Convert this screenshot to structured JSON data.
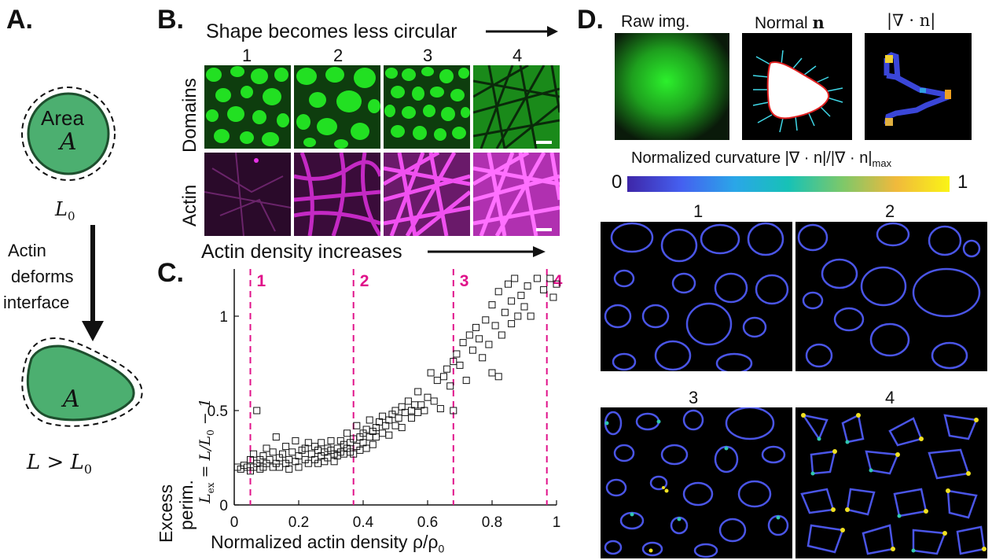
{
  "panel_a": {
    "label": "A.",
    "area_word": "Area",
    "area_symbol": "A",
    "l0": "L",
    "l0_sub": "0",
    "arrow_text_1": "Actin",
    "arrow_text_2": "deforms",
    "arrow_text_3": "interface",
    "deformed_symbol": "A",
    "condition": "L > L",
    "condition_sub": "0",
    "fill_color": "#4caf70",
    "stroke_color": "#1e4f2e"
  },
  "panel_b": {
    "label": "B.",
    "top_caption": "Shape becomes less circular",
    "bottom_caption": "Actin density increases",
    "columns": [
      "1",
      "2",
      "3",
      "4"
    ],
    "row1_label": "Domains",
    "row2_label": "Actin",
    "domain_color": "#1ee21e",
    "actin_color": "#e632e6"
  },
  "panel_c": {
    "label": "C.",
    "xlabel": "Normalized actin density ρ/ρ",
    "xlabel_sub": "0",
    "ylabel_1": "Excess",
    "ylabel_2": "perim.",
    "ylabel_math": "L",
    "ylabel_math_rest": " = L/L",
    "ylabel_math_end": " − 1",
    "ylabel_sub_ex": "ex",
    "ylabel_sub_0": "0",
    "line_color": "#e0128a"
  },
  "chart_data": {
    "type": "scatter",
    "title": "",
    "xlabel": "Normalized actin density ρ/ρ0",
    "ylabel": "Excess perim. Lex = L/L0 − 1",
    "xlim": [
      0,
      1
    ],
    "ylim": [
      0,
      1.25
    ],
    "xticks": [
      "0",
      "0.2",
      "0.4",
      "0.6",
      "0.8",
      "1"
    ],
    "yticks": [
      "0",
      "0.5",
      "1"
    ],
    "vlines": [
      {
        "label": "1",
        "x": 0.05
      },
      {
        "label": "2",
        "x": 0.37
      },
      {
        "label": "3",
        "x": 0.68
      },
      {
        "label": "4",
        "x": 0.97
      }
    ],
    "points": [
      [
        0.01,
        0.2
      ],
      [
        0.02,
        0.19
      ],
      [
        0.03,
        0.21
      ],
      [
        0.04,
        0.2
      ],
      [
        0.05,
        0.24
      ],
      [
        0.05,
        0.18
      ],
      [
        0.06,
        0.2
      ],
      [
        0.06,
        0.27
      ],
      [
        0.07,
        0.22
      ],
      [
        0.07,
        0.5
      ],
      [
        0.08,
        0.24
      ],
      [
        0.08,
        0.19
      ],
      [
        0.09,
        0.26
      ],
      [
        0.09,
        0.2
      ],
      [
        0.1,
        0.22
      ],
      [
        0.1,
        0.3
      ],
      [
        0.11,
        0.24
      ],
      [
        0.12,
        0.2
      ],
      [
        0.12,
        0.28
      ],
      [
        0.13,
        0.22
      ],
      [
        0.13,
        0.36
      ],
      [
        0.14,
        0.25
      ],
      [
        0.14,
        0.2
      ],
      [
        0.15,
        0.27
      ],
      [
        0.16,
        0.22
      ],
      [
        0.16,
        0.31
      ],
      [
        0.17,
        0.24
      ],
      [
        0.17,
        0.19
      ],
      [
        0.18,
        0.28
      ],
      [
        0.19,
        0.23
      ],
      [
        0.19,
        0.34
      ],
      [
        0.2,
        0.26
      ],
      [
        0.2,
        0.2
      ],
      [
        0.21,
        0.29
      ],
      [
        0.22,
        0.24
      ],
      [
        0.22,
        0.3
      ],
      [
        0.23,
        0.22
      ],
      [
        0.23,
        0.33
      ],
      [
        0.24,
        0.27
      ],
      [
        0.25,
        0.24
      ],
      [
        0.25,
        0.31
      ],
      [
        0.26,
        0.29
      ],
      [
        0.26,
        0.22
      ],
      [
        0.27,
        0.26
      ],
      [
        0.27,
        0.33
      ],
      [
        0.28,
        0.28
      ],
      [
        0.28,
        0.23
      ],
      [
        0.29,
        0.3
      ],
      [
        0.29,
        0.25
      ],
      [
        0.3,
        0.29
      ],
      [
        0.3,
        0.34
      ],
      [
        0.31,
        0.27
      ],
      [
        0.31,
        0.23
      ],
      [
        0.32,
        0.3
      ],
      [
        0.32,
        0.26
      ],
      [
        0.33,
        0.28
      ],
      [
        0.33,
        0.34
      ],
      [
        0.34,
        0.32
      ],
      [
        0.34,
        0.27
      ],
      [
        0.35,
        0.3
      ],
      [
        0.35,
        0.38
      ],
      [
        0.36,
        0.28
      ],
      [
        0.36,
        0.33
      ],
      [
        0.37,
        0.35
      ],
      [
        0.37,
        0.27
      ],
      [
        0.38,
        0.31
      ],
      [
        0.38,
        0.42
      ],
      [
        0.39,
        0.36
      ],
      [
        0.39,
        0.29
      ],
      [
        0.4,
        0.38
      ],
      [
        0.4,
        0.33
      ],
      [
        0.41,
        0.4
      ],
      [
        0.41,
        0.3
      ],
      [
        0.42,
        0.36
      ],
      [
        0.42,
        0.45
      ],
      [
        0.43,
        0.39
      ],
      [
        0.43,
        0.32
      ],
      [
        0.44,
        0.41
      ],
      [
        0.44,
        0.36
      ],
      [
        0.45,
        0.44
      ],
      [
        0.46,
        0.38
      ],
      [
        0.46,
        0.47
      ],
      [
        0.47,
        0.42
      ],
      [
        0.48,
        0.45
      ],
      [
        0.48,
        0.37
      ],
      [
        0.49,
        0.48
      ],
      [
        0.5,
        0.42
      ],
      [
        0.5,
        0.5
      ],
      [
        0.51,
        0.46
      ],
      [
        0.52,
        0.52
      ],
      [
        0.52,
        0.41
      ],
      [
        0.53,
        0.49
      ],
      [
        0.54,
        0.55
      ],
      [
        0.55,
        0.5
      ],
      [
        0.55,
        0.46
      ],
      [
        0.56,
        0.53
      ],
      [
        0.57,
        0.49
      ],
      [
        0.57,
        0.6
      ],
      [
        0.58,
        0.53
      ],
      [
        0.59,
        0.5
      ],
      [
        0.6,
        0.57
      ],
      [
        0.61,
        0.7
      ],
      [
        0.62,
        0.55
      ],
      [
        0.63,
        0.66
      ],
      [
        0.64,
        0.51
      ],
      [
        0.65,
        0.68
      ],
      [
        0.66,
        0.72
      ],
      [
        0.67,
        0.63
      ],
      [
        0.68,
        0.76
      ],
      [
        0.68,
        0.5
      ],
      [
        0.69,
        0.8
      ],
      [
        0.7,
        0.74
      ],
      [
        0.71,
        0.86
      ],
      [
        0.72,
        0.66
      ],
      [
        0.73,
        0.9
      ],
      [
        0.74,
        0.82
      ],
      [
        0.75,
        0.94
      ],
      [
        0.76,
        0.88
      ],
      [
        0.77,
        0.78
      ],
      [
        0.78,
        0.98
      ],
      [
        0.79,
        0.85
      ],
      [
        0.8,
        1.06
      ],
      [
        0.8,
        0.7
      ],
      [
        0.81,
        0.95
      ],
      [
        0.82,
        1.13
      ],
      [
        0.82,
        0.68
      ],
      [
        0.83,
        0.9
      ],
      [
        0.84,
        1.02
      ],
      [
        0.85,
        1.17
      ],
      [
        0.86,
        0.96
      ],
      [
        0.86,
        1.08
      ],
      [
        0.87,
        1.2
      ],
      [
        0.88,
        1.0
      ],
      [
        0.89,
        1.11
      ],
      [
        0.9,
        1.05
      ],
      [
        0.91,
        1.16
      ],
      [
        0.92,
        1.0
      ],
      [
        0.94,
        1.2
      ],
      [
        0.96,
        1.14
      ],
      [
        0.98,
        1.2
      ],
      [
        0.99,
        1.1
      ],
      [
        1.0,
        1.17
      ]
    ]
  },
  "panel_d": {
    "label": "D.",
    "raw_title": "Raw img.",
    "normal_title": "Normal ",
    "normal_bold": "n",
    "curv_title": "|∇ · n|",
    "colorbar_title": "Normalized curvature |∇ · n|/|∇ · n|",
    "colorbar_sub": "max",
    "colorbar_min": "0",
    "colorbar_max": "1",
    "columns": [
      "1",
      "2",
      "3",
      "4"
    ],
    "contour_color": "#4a55e6",
    "arrow_color": "#40d8e8",
    "outline_color": "#e02020"
  }
}
